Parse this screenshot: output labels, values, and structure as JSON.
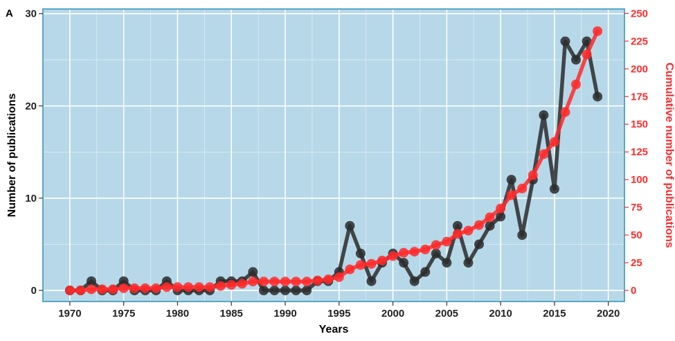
{
  "chart_data": {
    "type": "line",
    "panel_label": "A",
    "xlabel": "Years",
    "ylabel": "Number of publications",
    "ylabel_right": "Cumulative number of publications",
    "xlim": [
      1967.5,
      2021.5
    ],
    "ylim": [
      -1.2,
      30.5
    ],
    "ylim_right": [
      -10,
      254
    ],
    "x_ticks": [
      1970,
      1975,
      1980,
      1985,
      1990,
      1995,
      2000,
      2005,
      2010,
      2015,
      2020
    ],
    "x_tick_labels": [
      "1970",
      "1975",
      "1980",
      "1985",
      "1990",
      "1995",
      "2000",
      "2005",
      "2010",
      "2015",
      "2020"
    ],
    "y_ticks": [
      0,
      10,
      20,
      30
    ],
    "y_tick_labels": [
      "0",
      "10",
      "20",
      "30"
    ],
    "y_ticks_right": [
      0,
      25,
      50,
      75,
      100,
      125,
      150,
      175,
      200,
      225,
      250
    ],
    "y_tick_labels_right": [
      "0",
      "25",
      "50",
      "75",
      "100",
      "125",
      "150",
      "175",
      "200",
      "225",
      "250"
    ],
    "grid": true,
    "background_color": "#b7d8e8",
    "frame_color": "#5aa6c5",
    "x": [
      1970,
      1971,
      1972,
      1973,
      1974,
      1975,
      1976,
      1977,
      1978,
      1979,
      1980,
      1981,
      1982,
      1983,
      1984,
      1985,
      1986,
      1987,
      1988,
      1989,
      1990,
      1991,
      1992,
      1993,
      1994,
      1995,
      1996,
      1997,
      1998,
      1999,
      2000,
      2001,
      2002,
      2003,
      2004,
      2005,
      2006,
      2007,
      2008,
      2009,
      2010,
      2011,
      2012,
      2013,
      2014,
      2015,
      2016,
      2017,
      2018,
      2019
    ],
    "series": [
      {
        "axis": "left",
        "color": "#2b2b2b",
        "values": [
          0,
          0,
          1,
          0,
          0,
          1,
          0,
          0,
          0,
          1,
          0,
          0,
          0,
          0,
          1,
          1,
          1,
          2,
          0,
          0,
          0,
          0,
          0,
          1,
          1,
          2,
          7,
          4,
          1,
          3,
          4,
          3,
          1,
          2,
          4,
          3,
          7,
          3,
          5,
          7,
          8,
          12,
          6,
          12,
          19,
          11,
          27,
          25,
          27,
          21
        ]
      },
      {
        "axis": "right",
        "color": "#ff2a2a",
        "values": [
          0,
          0,
          1,
          1,
          1,
          2,
          2,
          2,
          2,
          3,
          3,
          3,
          3,
          3,
          4,
          5,
          6,
          8,
          8,
          8,
          8,
          8,
          8,
          9,
          10,
          12,
          19,
          23,
          24,
          27,
          31,
          34,
          35,
          37,
          41,
          44,
          51,
          54,
          59,
          66,
          74,
          86,
          92,
          104,
          123,
          134,
          161,
          186,
          213,
          234
        ]
      }
    ]
  }
}
